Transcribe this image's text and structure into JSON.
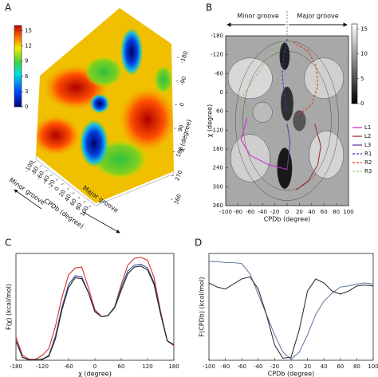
{
  "chart_data": [
    {
      "type": "surface3d",
      "panel_label": "A",
      "colorbar": {
        "lim": [
          0,
          16
        ],
        "ticks": [
          0,
          3,
          6,
          9,
          12,
          15
        ]
      },
      "xlabel": "CPDb (degree)",
      "xlim": [
        -100,
        100
      ],
      "xticks": [
        -100,
        -80,
        -60,
        -40,
        -20,
        0,
        20,
        40,
        60,
        80,
        100
      ],
      "ylabel": "χ (degree)",
      "ylim": [
        -180,
        360
      ],
      "yticks": [
        -180,
        -90,
        0,
        90,
        180,
        270,
        360
      ],
      "annotations": [
        "Minor groove",
        "Major groove"
      ]
    },
    {
      "type": "line",
      "panel_label": "B",
      "background": "contour",
      "annotations": [
        "Minor groove",
        "Major groove"
      ],
      "xlabel": "CPDb (degree)",
      "xlim": [
        -100,
        100
      ],
      "xticks": [
        -100,
        -80,
        -60,
        -40,
        -20,
        0,
        20,
        40,
        60,
        80,
        100
      ],
      "ylabel": "χ (degree)",
      "ylim": [
        -180,
        360
      ],
      "yticks": [
        -180,
        -120,
        -60,
        0,
        60,
        120,
        180,
        240,
        300,
        360
      ],
      "yaxis_inverted": true,
      "colorbar": {
        "lim": [
          0,
          16
        ],
        "ticks": [
          0,
          5,
          10,
          15
        ]
      },
      "legend": "right",
      "series": [
        {
          "name": "L1",
          "color": "#cc33cc",
          "style": "solid",
          "x": [
            -65,
            -75,
            -60,
            -30,
            0
          ],
          "values": [
            80,
            150,
            200,
            230,
            245
          ]
        },
        {
          "name": "L2",
          "color": "#a03030",
          "style": "solid",
          "x": [
            45,
            55,
            50,
            35,
            15
          ],
          "values": [
            100,
            170,
            230,
            280,
            310
          ]
        },
        {
          "name": "L3",
          "color": "#6a3d9a",
          "style": "solid",
          "x": [
            0,
            5,
            2,
            0
          ],
          "values": [
            100,
            160,
            210,
            245
          ]
        },
        {
          "name": "R1",
          "color": "#2b3fc4",
          "style": "dashed",
          "x": [
            0,
            -5,
            -8,
            -5,
            0
          ],
          "values": [
            -170,
            -120,
            -60,
            0,
            60
          ]
        },
        {
          "name": "R2",
          "color": "#e03a20",
          "style": "dashed",
          "x": [
            10,
            35,
            48,
            50,
            40,
            15
          ],
          "values": [
            -160,
            -130,
            -80,
            -20,
            40,
            75
          ]
        },
        {
          "name": "R3",
          "color": "#8fd070",
          "style": "dashed",
          "x": [
            -5,
            -30,
            -55,
            -75,
            -65
          ],
          "values": [
            -170,
            -110,
            -40,
            20,
            80
          ]
        }
      ]
    },
    {
      "type": "line",
      "panel_label": "C",
      "xlabel": "χ (degree)",
      "ylabel": "F(χ) (kcal/mol)",
      "x": [
        -180,
        -165,
        -150,
        -135,
        -120,
        -105,
        -90,
        -75,
        -60,
        -45,
        -30,
        -15,
        0,
        15,
        30,
        45,
        60,
        75,
        90,
        105,
        120,
        135,
        150,
        165,
        180
      ],
      "xlim": [
        -180,
        180
      ],
      "xticks": [
        -180,
        -120,
        -60,
        0,
        60,
        120,
        180
      ],
      "ylim": [
        0,
        11
      ],
      "series": [
        {
          "color": "#d03030",
          "values": [
            2.4,
            0.5,
            0.1,
            0.1,
            0.5,
            1.2,
            3.5,
            6.5,
            8.8,
            9.5,
            9.6,
            7.5,
            5.2,
            4.5,
            4.6,
            5.5,
            7.8,
            9.8,
            10.5,
            10.6,
            10.3,
            8.5,
            5.0,
            2.0,
            1.5
          ]
        },
        {
          "color": "#3a4fa0",
          "values": [
            2.0,
            0.3,
            0.05,
            0.05,
            0.1,
            0.5,
            2.5,
            5.5,
            7.8,
            8.7,
            8.6,
            7.0,
            5.0,
            4.5,
            4.6,
            5.5,
            7.5,
            9.2,
            9.8,
            9.9,
            9.5,
            8.0,
            4.8,
            2.0,
            1.6
          ]
        },
        {
          "color": "#222222",
          "values": [
            2.0,
            0.3,
            0.05,
            0.05,
            0.1,
            0.4,
            2.2,
            5.2,
            7.5,
            8.5,
            8.4,
            7.0,
            5.0,
            4.5,
            4.6,
            5.4,
            7.2,
            8.9,
            9.6,
            9.7,
            9.3,
            7.8,
            4.7,
            2.0,
            1.6
          ]
        }
      ]
    },
    {
      "type": "line",
      "panel_label": "D",
      "xlabel": "CPDb (degree)",
      "ylabel": "F(CPDb) (kcal/mol)",
      "x": [
        -100,
        -90,
        -80,
        -70,
        -60,
        -50,
        -40,
        -30,
        -20,
        -10,
        0,
        10,
        20,
        30,
        40,
        50,
        60,
        70,
        80,
        90,
        100
      ],
      "xlim": [
        -100,
        100
      ],
      "xticks": [
        -100,
        -80,
        -60,
        -40,
        -20,
        0,
        20,
        40,
        60,
        80,
        100
      ],
      "ylim": [
        0,
        10.5
      ],
      "series": [
        {
          "color": "#6b7fa6",
          "values": [
            9.7,
            9.7,
            9.6,
            9.6,
            9.5,
            8.5,
            6.5,
            4.5,
            2.5,
            0.8,
            0.1,
            0.8,
            2.5,
            4.5,
            5.8,
            6.6,
            7.2,
            7.3,
            7.5,
            7.6,
            7.5
          ]
        },
        {
          "color": "#333333",
          "values": [
            7.6,
            7.2,
            7.0,
            7.5,
            8.0,
            8.2,
            7.0,
            4.5,
            1.5,
            0.2,
            0.3,
            3.0,
            6.8,
            8.0,
            7.6,
            6.8,
            6.5,
            6.8,
            7.3,
            7.4,
            7.3
          ]
        }
      ]
    }
  ]
}
